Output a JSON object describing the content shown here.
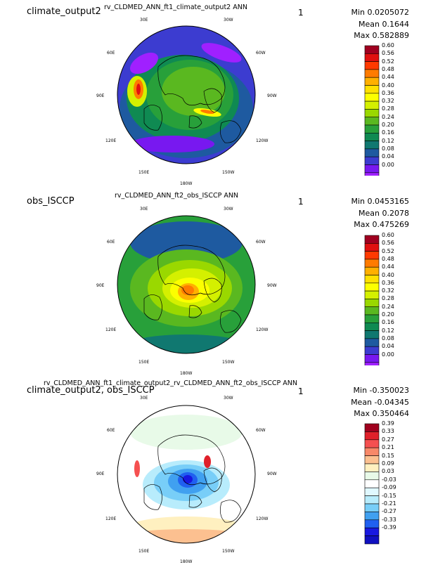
{
  "panels": [
    {
      "case": "climate_output2",
      "title": "rv_CLDMED_ANN_ft1_climate_output2  ANN",
      "units": "1",
      "stats": {
        "min": "Min 0.0205072",
        "mean": "Mean 0.1644",
        "max": "Max 0.582889"
      },
      "levels": [
        "0.60",
        "0.56",
        "0.52",
        "0.48",
        "0.44",
        "0.40",
        "0.36",
        "0.32",
        "0.28",
        "0.24",
        "0.20",
        "0.16",
        "0.12",
        "0.08",
        "0.04",
        "0.00"
      ],
      "colors": [
        "#a00020",
        "#e01010",
        "#ff3a00",
        "#ff7b00",
        "#ffb000",
        "#ffe000",
        "#fcff00",
        "#d4f000",
        "#9ad800",
        "#5ab820",
        "#28a03a",
        "#0f8a52",
        "#107870",
        "#1e5aa0",
        "#3c3cd0",
        "#7818f0",
        "#a020ff"
      ],
      "lon_labels": {
        "top_left": "30E",
        "top_right": "30W",
        "upper_left": "60E",
        "upper_right": "60W",
        "left": "90E",
        "right": "90W",
        "lower_left": "120E",
        "lower_right": "120W",
        "bottom_left": "150E",
        "bottom_right": "150W",
        "bottom": "180W"
      }
    },
    {
      "case": "obs_ISCCP",
      "title": "rv_CLDMED_ANN_ft2_obs_ISCCP  ANN",
      "units": "1",
      "stats": {
        "min": "Min 0.0453165",
        "mean": "Mean 0.2078",
        "max": "Max 0.475269"
      },
      "levels": [
        "0.60",
        "0.56",
        "0.52",
        "0.48",
        "0.44",
        "0.40",
        "0.36",
        "0.32",
        "0.28",
        "0.24",
        "0.20",
        "0.16",
        "0.12",
        "0.08",
        "0.04",
        "0.00"
      ],
      "colors": [
        "#a00020",
        "#e01010",
        "#ff3a00",
        "#ff7b00",
        "#ffb000",
        "#ffe000",
        "#fcff00",
        "#d4f000",
        "#9ad800",
        "#5ab820",
        "#28a03a",
        "#0f8a52",
        "#107870",
        "#1e5aa0",
        "#3c3cd0",
        "#7818f0",
        "#a020ff"
      ],
      "lon_labels": {
        "top_left": "30E",
        "top_right": "30W",
        "upper_left": "60E",
        "upper_right": "60W",
        "left": "90E",
        "right": "90W",
        "lower_left": "120E",
        "lower_right": "120W",
        "bottom_left": "150E",
        "bottom_right": "150W",
        "bottom": "180W"
      }
    },
    {
      "case": "climate_output2, obs_ISCCP",
      "title": "rv_CLDMED_ANN_ft1_climate_output2_rv_CLDMED_ANN_ft2_obs_ISCCP  ANN",
      "units": "1",
      "stats": {
        "min": "Min -0.350023",
        "mean": "Mean -0.04345",
        "max": "Max 0.350464"
      },
      "levels": [
        "0.39",
        "0.33",
        "0.27",
        "0.21",
        "0.15",
        "0.09",
        "0.03",
        "-0.03",
        "-0.09",
        "-0.15",
        "-0.21",
        "-0.27",
        "-0.33",
        "-0.39"
      ],
      "colors": [
        "#a0001e",
        "#e0202a",
        "#f55050",
        "#f88868",
        "#fcc090",
        "#fff0c0",
        "#e8fae8",
        "#ffffff",
        "#e0f8ff",
        "#b8ecfc",
        "#78cef8",
        "#40a0f0",
        "#2060f0",
        "#1818e0",
        "#1010c0"
      ],
      "lon_labels": {
        "top_left": "30E",
        "top_right": "30W",
        "upper_left": "60E",
        "upper_right": "60W",
        "left": "90E",
        "right": "90W",
        "lower_left": "120E",
        "lower_right": "120W",
        "bottom_left": "150E",
        "bottom_right": "150W",
        "bottom": "180W"
      }
    }
  ],
  "chart_data": [
    {
      "type": "heatmap",
      "projection": "polar stereographic (north pole)",
      "case": "climate_output2",
      "title": "rv_CLDMED_ANN_ft1_climate_output2  ANN",
      "units": "1",
      "min": 0.0205072,
      "mean": 0.1644,
      "max": 0.582889,
      "contour_levels": [
        0.0,
        0.04,
        0.08,
        0.12,
        0.16,
        0.2,
        0.24,
        0.28,
        0.32,
        0.36,
        0.4,
        0.44,
        0.48,
        0.52,
        0.56,
        0.6
      ],
      "colorbar_range": [
        0.0,
        0.6
      ]
    },
    {
      "type": "heatmap",
      "projection": "polar stereographic (north pole)",
      "case": "obs_ISCCP",
      "title": "rv_CLDMED_ANN_ft2_obs_ISCCP  ANN",
      "units": "1",
      "min": 0.0453165,
      "mean": 0.2078,
      "max": 0.475269,
      "contour_levels": [
        0.0,
        0.04,
        0.08,
        0.12,
        0.16,
        0.2,
        0.24,
        0.28,
        0.32,
        0.36,
        0.4,
        0.44,
        0.48,
        0.52,
        0.56,
        0.6
      ],
      "colorbar_range": [
        0.0,
        0.6
      ]
    },
    {
      "type": "heatmap",
      "projection": "polar stereographic (north pole)",
      "case": "climate_output2, obs_ISCCP",
      "title": "rv_CLDMED_ANN_ft1_climate_output2_rv_CLDMED_ANN_ft2_obs_ISCCP  ANN",
      "units": "1",
      "min": -0.350023,
      "mean": -0.04345,
      "max": 0.350464,
      "contour_levels": [
        -0.39,
        -0.33,
        -0.27,
        -0.21,
        -0.15,
        -0.09,
        -0.03,
        0.03,
        0.09,
        0.15,
        0.21,
        0.27,
        0.33,
        0.39
      ],
      "colorbar_range": [
        -0.39,
        0.39
      ]
    }
  ]
}
